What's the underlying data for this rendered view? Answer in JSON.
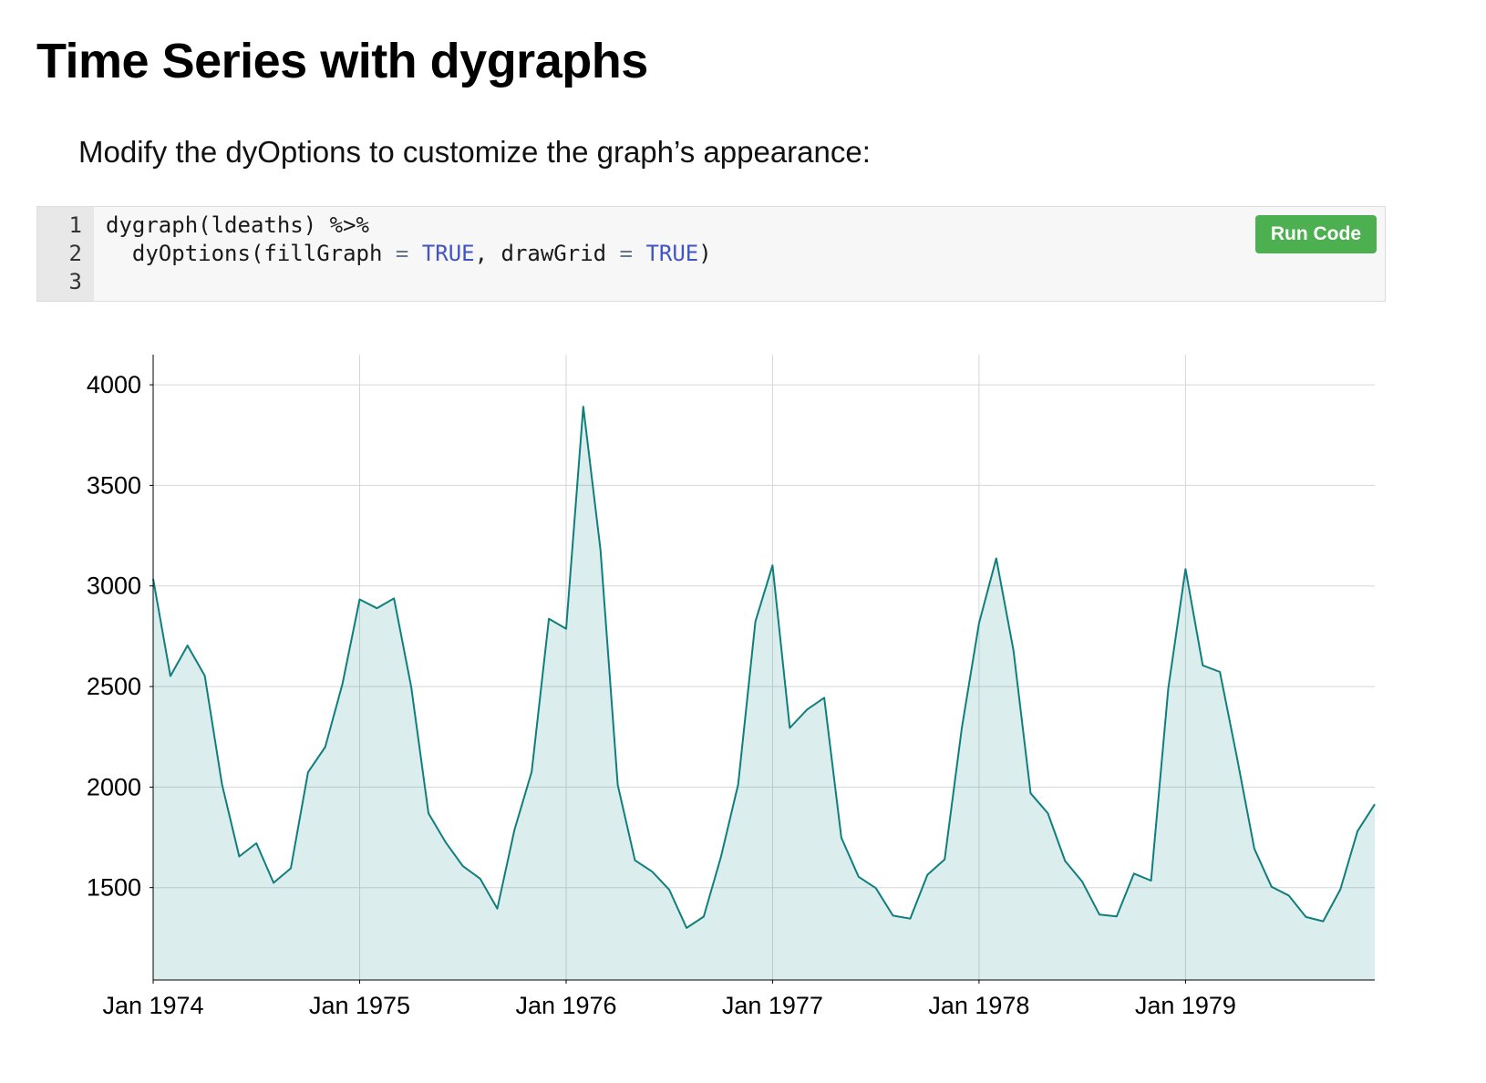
{
  "page": {
    "title": "Time Series with dygraphs",
    "subtitle": "Modify the dyOptions to customize the graph’s appearance:"
  },
  "code": {
    "run_button": "Run Code",
    "lines": [
      {
        "number": "1",
        "tokens": [
          {
            "text": "dygraph(ldeaths) %>%",
            "color": "plain"
          }
        ]
      },
      {
        "number": "2",
        "tokens": [
          {
            "text": "  dyOptions(fillGraph ",
            "color": "plain"
          },
          {
            "text": "=",
            "color": "op"
          },
          {
            "text": " ",
            "color": "plain"
          },
          {
            "text": "TRUE",
            "color": "kw"
          },
          {
            "text": ", drawGrid ",
            "color": "plain"
          },
          {
            "text": "=",
            "color": "op"
          },
          {
            "text": " ",
            "color": "plain"
          },
          {
            "text": "TRUE",
            "color": "kw"
          },
          {
            "text": ")",
            "color": "plain"
          }
        ]
      },
      {
        "number": "3",
        "tokens": []
      }
    ]
  },
  "chart_data": {
    "type": "area",
    "title": "",
    "series_name": "ldeaths",
    "x_start": "Jan 1974",
    "x_end": "Dec 1979",
    "frequency": "monthly",
    "values": [
      3035,
      2552,
      2704,
      2554,
      2014,
      1655,
      1721,
      1524,
      1596,
      2074,
      2199,
      2512,
      2933,
      2889,
      2938,
      2497,
      1870,
      1726,
      1607,
      1545,
      1396,
      1787,
      2076,
      2837,
      2787,
      3891,
      3179,
      2011,
      1636,
      1580,
      1489,
      1300,
      1356,
      1653,
      2013,
      2823,
      3102,
      2294,
      2385,
      2444,
      1748,
      1554,
      1498,
      1361,
      1346,
      1564,
      1640,
      2293,
      2815,
      3137,
      2679,
      1969,
      1870,
      1633,
      1529,
      1366,
      1357,
      1570,
      1535,
      2491,
      3084,
      2605,
      2573,
      2143,
      1693,
      1504,
      1461,
      1354,
      1333,
      1492,
      1781,
      1915
    ],
    "ylim": [
      1041,
      4150
    ],
    "yticks": [
      1500,
      2000,
      2500,
      3000,
      3500,
      4000
    ],
    "xticks": [
      {
        "label": "Jan 1974",
        "index": 0
      },
      {
        "label": "Jan 1975",
        "index": 12
      },
      {
        "label": "Jan 1976",
        "index": 24
      },
      {
        "label": "Jan 1977",
        "index": 36
      },
      {
        "label": "Jan 1978",
        "index": 48
      },
      {
        "label": "Jan 1979",
        "index": 60
      }
    ],
    "grid": true,
    "line_color": "#0f7f7d",
    "fill_color": "rgba(0,128,128,0.14)",
    "grid_color": "#d6d6d6",
    "axis_color": "#000000",
    "tick_label_color": "#000000"
  }
}
